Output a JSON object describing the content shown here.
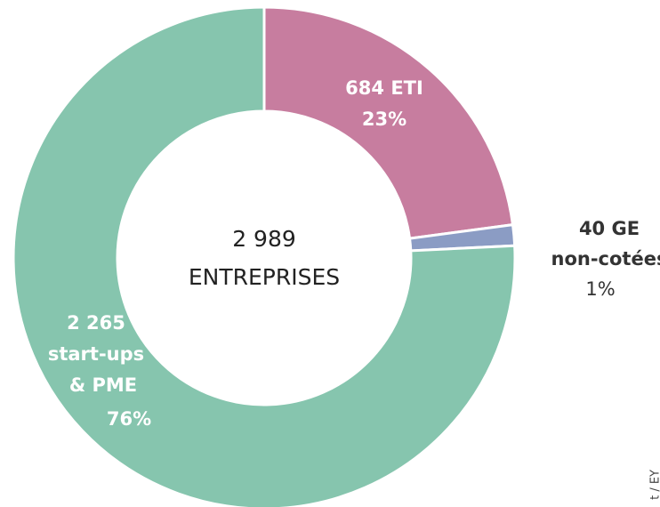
{
  "chart_data": {
    "type": "donut",
    "values": [
      684,
      40,
      2265
    ],
    "colors": [
      "#c77d9f",
      "#8b9cc4",
      "#86c5ae"
    ],
    "label_lines": [
      [
        "684 ETI"
      ],
      [
        "40 GE",
        "non-cotées"
      ],
      [
        "2 265",
        "start-ups",
        "& PME"
      ]
    ],
    "percents": [
      23,
      1,
      76
    ],
    "percent_labels": [
      "23%",
      "1%",
      "76%"
    ],
    "total": 2989,
    "total_label": "2 989",
    "center_text": "ENTREPRISES",
    "source": "t / EY"
  }
}
